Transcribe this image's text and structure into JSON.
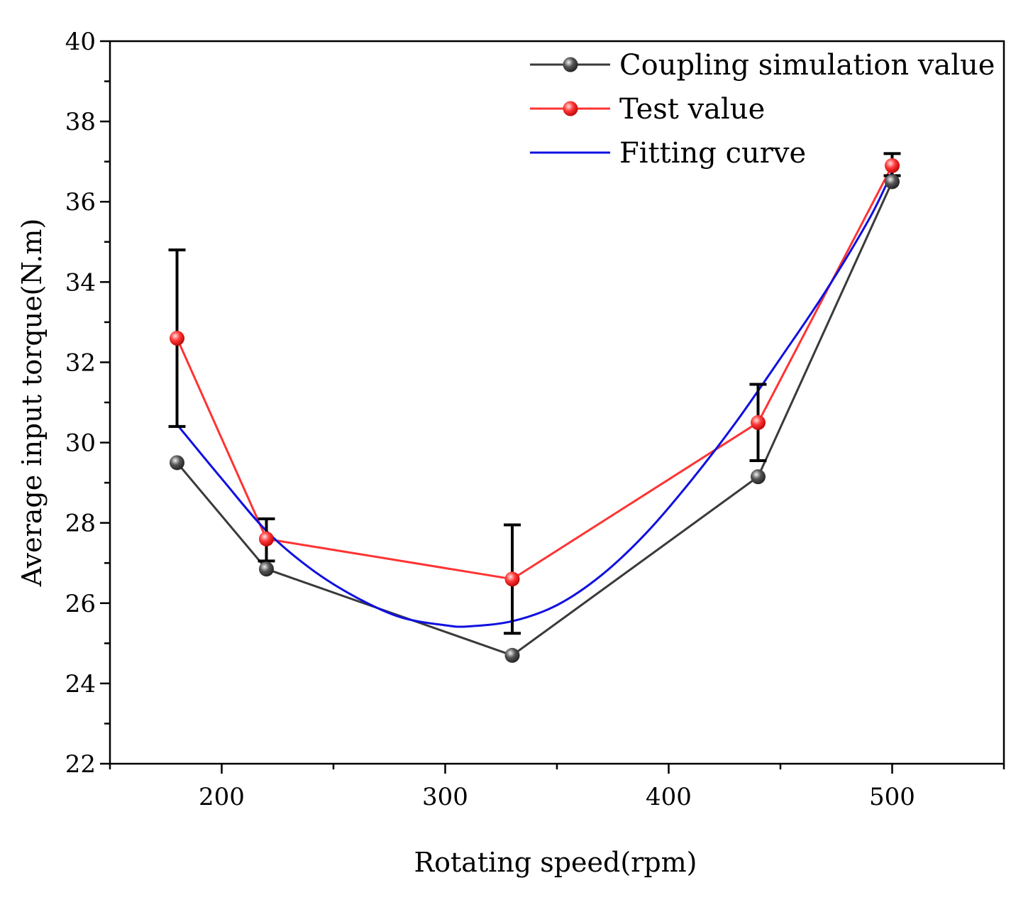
{
  "chart_data": {
    "type": "line",
    "title": "",
    "xlabel": "Rotating speed(rpm)",
    "ylabel": "Average input torque(N.m)",
    "xlim": [
      150,
      550
    ],
    "ylim": [
      22,
      40
    ],
    "xticks": [
      200,
      300,
      400,
      500
    ],
    "yticks": [
      22,
      24,
      26,
      28,
      30,
      32,
      34,
      36,
      38,
      40
    ],
    "xtick_labels": [
      "200",
      "300",
      "400",
      "500"
    ],
    "ytick_labels": [
      "22",
      "24",
      "26",
      "28",
      "30",
      "32",
      "34",
      "36",
      "38",
      "40"
    ],
    "legend_position": "top-right",
    "series": [
      {
        "name": "Coupling simulation value",
        "color": "#3a3a3a",
        "marker": "sphere",
        "x": [
          180,
          220,
          330,
          440,
          500
        ],
        "y": [
          29.5,
          26.85,
          24.7,
          29.15,
          36.5
        ]
      },
      {
        "name": "Test value",
        "color": "#ff3333",
        "marker": "sphere",
        "x": [
          180,
          220,
          330,
          440,
          500
        ],
        "y": [
          32.6,
          27.6,
          26.6,
          30.5,
          36.9
        ],
        "error_low": [
          30.4,
          27.05,
          25.25,
          29.55,
          36.65
        ],
        "error_high": [
          34.8,
          28.1,
          27.95,
          31.45,
          37.2
        ]
      },
      {
        "name": "Fitting curve",
        "color": "#1010e0",
        "marker": "none",
        "smooth": true,
        "x": [
          180,
          200,
          220,
          240,
          260,
          280,
          300,
          310,
          330,
          350,
          370,
          390,
          410,
          430,
          450,
          470,
          490,
          500
        ],
        "y": [
          30.45,
          29.1,
          27.8,
          26.85,
          26.15,
          25.65,
          25.45,
          25.42,
          25.55,
          25.95,
          26.7,
          27.75,
          29.05,
          30.5,
          32.1,
          33.75,
          35.6,
          36.75
        ]
      }
    ]
  }
}
